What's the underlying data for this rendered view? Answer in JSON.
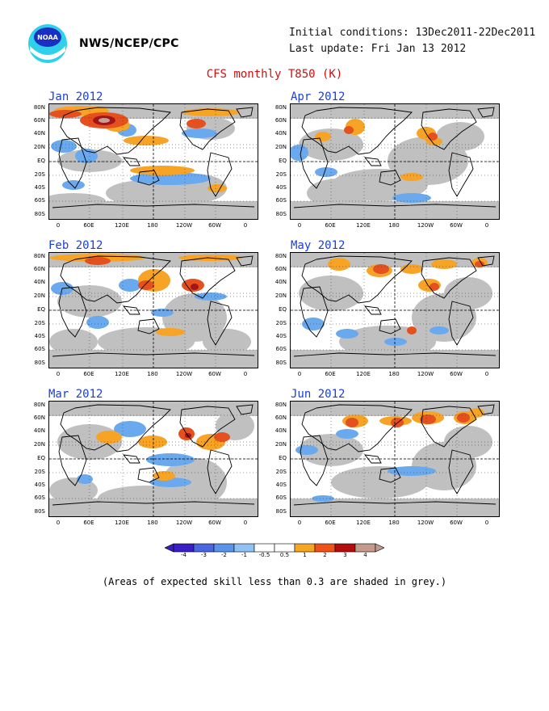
{
  "header": {
    "agency": "NWS/NCEP/CPC",
    "initial_conditions": "Initial conditions: 13Dec2011-22Dec2011",
    "last_update": "Last update: Fri Jan 13 2012",
    "title": "CFS monthly T850 (K)"
  },
  "panels": [
    {
      "label": "Jan 2012"
    },
    {
      "label": "Apr 2012"
    },
    {
      "label": "Feb 2012"
    },
    {
      "label": "May 2012"
    },
    {
      "label": "Mar 2012"
    },
    {
      "label": "Jun 2012"
    }
  ],
  "lat_labels": [
    "80N",
    "60N",
    "40N",
    "20N",
    "EQ",
    "20S",
    "40S",
    "60S",
    "80S"
  ],
  "lon_labels": [
    "0",
    "60E",
    "120E",
    "180",
    "120W",
    "60W",
    "0"
  ],
  "colorbar": {
    "labels": [
      "-4",
      "-3",
      "-2",
      "-1",
      "-0.5",
      "0.5",
      "1",
      "2",
      "3",
      "4"
    ],
    "colors": [
      "#3a1fc7",
      "#4a66e0",
      "#5a93ea",
      "#8fc1f2",
      "#ffffff",
      "#ffffff",
      "#f5a623",
      "#f0521a",
      "#b30d0d",
      "#c49a8c"
    ]
  },
  "footer": "(Areas of expected skill less than 0.3 are shaded in grey.)",
  "colors": {
    "grey": "#c0c0c0",
    "lightblue": "#6aa9ee",
    "orange": "#f7a326",
    "red": "#e4501e",
    "darkred": "#a3151a",
    "brown": "#c8a093"
  }
}
